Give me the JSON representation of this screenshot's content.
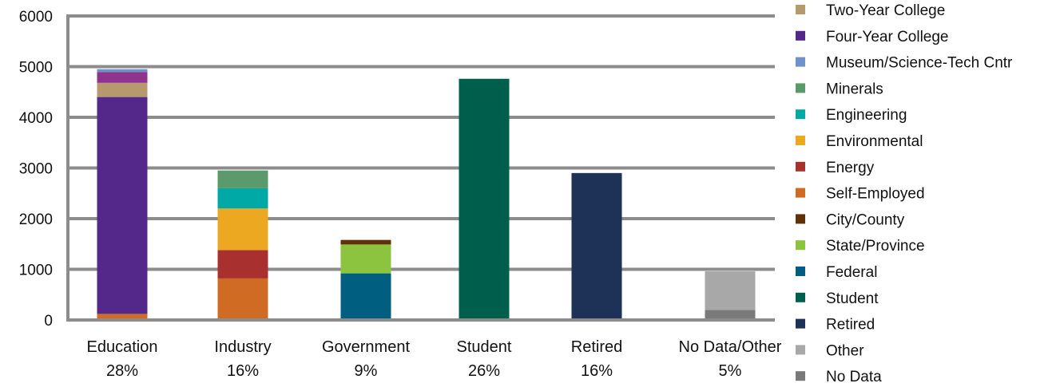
{
  "chart_data": {
    "type": "bar",
    "stacked": true,
    "title": "",
    "xlabel": "",
    "ylabel": "",
    "ylim": [
      0,
      6000
    ],
    "yticks": [
      0,
      1000,
      2000,
      3000,
      4000,
      5000,
      6000
    ],
    "grid": true,
    "legend_position": "right",
    "categories": [
      "Education",
      "Industry",
      "Government",
      "Student",
      "Retired",
      "No Data/Other"
    ],
    "category_percents": [
      "28%",
      "16%",
      "9%",
      "26%",
      "16%",
      "5%"
    ],
    "series": [
      {
        "name": "Two-Year College",
        "color": "#b69a6e",
        "values": [
          280,
          0,
          0,
          0,
          0,
          0
        ]
      },
      {
        "name": "Four-Year College",
        "color": "#54288a",
        "values": [
          4280,
          0,
          0,
          0,
          0,
          0
        ]
      },
      {
        "name": "Museum/Science-Tech Cntr",
        "color": "#6f93c9",
        "values": [
          60,
          0,
          0,
          0,
          0,
          0
        ]
      },
      {
        "name": "Minerals",
        "color": "#5a9a6d",
        "values": [
          0,
          350,
          0,
          0,
          0,
          0
        ]
      },
      {
        "name": "Engineering",
        "color": "#00a9a5",
        "values": [
          0,
          400,
          0,
          0,
          0,
          0
        ]
      },
      {
        "name": "Environmental",
        "color": "#eca820",
        "values": [
          0,
          820,
          0,
          0,
          0,
          0
        ]
      },
      {
        "name": "Energy",
        "color": "#a8302e",
        "values": [
          0,
          560,
          0,
          0,
          0,
          0
        ]
      },
      {
        "name": "Self-Employed",
        "color": "#d06b23",
        "values": [
          120,
          820,
          0,
          0,
          0,
          0
        ]
      },
      {
        "name": "City/County",
        "color": "#5d3208",
        "values": [
          0,
          0,
          90,
          0,
          0,
          0
        ]
      },
      {
        "name": "State/Province",
        "color": "#8dc43f",
        "values": [
          0,
          0,
          570,
          0,
          0,
          0
        ]
      },
      {
        "name": "Federal",
        "color": "#005e80",
        "values": [
          0,
          0,
          920,
          0,
          0,
          0
        ]
      },
      {
        "name": "Student",
        "color": "#005e4d",
        "values": [
          0,
          0,
          0,
          4760,
          0,
          0
        ]
      },
      {
        "name": "Retired",
        "color": "#1d3256",
        "values": [
          0,
          0,
          0,
          0,
          2900,
          0
        ]
      },
      {
        "name": "Other",
        "color": "#a8a8a8",
        "values": [
          0,
          0,
          0,
          0,
          0,
          760
        ]
      },
      {
        "name": "No Data",
        "color": "#7a7a7a",
        "values": [
          0,
          0,
          0,
          0,
          0,
          200
        ]
      }
    ],
    "extra_segments": [
      {
        "category": "Education",
        "color": "#90338f",
        "value": 210
      }
    ]
  }
}
